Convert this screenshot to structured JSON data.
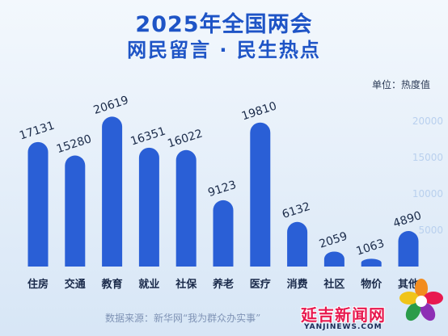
{
  "header": {
    "title": "2025年全国两会",
    "subtitle": "网民留言 · 民生热点"
  },
  "unit_label": "单位：热度值",
  "source_text": "数据来源：新华网“我为群众办实事”",
  "logo": {
    "text": "延吉新闻网",
    "domain": "YANJINEWS.COM",
    "icon": "flower-logo-icon"
  },
  "colors": {
    "bar": "#2a5fd6",
    "title": "#1e54c6",
    "value_label": "#1c2c4a",
    "axis_tick": "#b9d0ee",
    "logo": "#e8194f"
  },
  "chart_data": {
    "type": "bar",
    "title": "网民留言 · 民生热点",
    "categories": [
      "住房",
      "交通",
      "教育",
      "就业",
      "社保",
      "养老",
      "医疗",
      "消费",
      "社区",
      "物价",
      "其他"
    ],
    "values": [
      17131,
      15280,
      20619,
      16351,
      16022,
      9123,
      19810,
      6132,
      2059,
      1063,
      4890
    ],
    "value_labels": [
      "17131",
      "15280",
      "20619",
      "16351",
      "16022",
      "9123",
      "19810",
      "6132",
      "2059",
      "1063",
      "4890"
    ],
    "ylim": [
      0,
      22000
    ],
    "yticks": [
      5000,
      10000,
      15000,
      20000
    ],
    "ytick_labels": [
      "5000",
      "10000",
      "15000",
      "20000"
    ],
    "ylabel": "单位：热度值",
    "grid": false,
    "value_labels_rotated": true
  }
}
